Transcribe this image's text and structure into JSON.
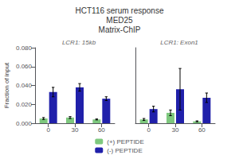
{
  "title": "HCT116 serum response\nMED25\nMatrix-ChIP",
  "chart_data": [
    {
      "type": "bar",
      "title": "LCR1: 15kb",
      "ylabel": "Fraction of input",
      "categories": [
        "0",
        "30",
        "60"
      ],
      "series": [
        {
          "name": "(+) PEPTIDE",
          "color": "#7EC87E",
          "values": [
            0.005,
            0.006,
            0.004
          ],
          "errors": [
            0.001,
            0.001,
            0.0005
          ]
        },
        {
          "name": "(-) PEPTIDE",
          "color": "#2020AA",
          "values": [
            0.033,
            0.038,
            0.026
          ],
          "errors": [
            0.005,
            0.004,
            0.002
          ]
        }
      ],
      "ylim": [
        0,
        0.08
      ],
      "yticks": [
        {
          "value": 0,
          "label": "0.000"
        },
        {
          "value": 0.02,
          "label": "0.020"
        },
        {
          "value": 0.04,
          "label": "0.040"
        },
        {
          "value": 0.06,
          "label": "0.060"
        },
        {
          "value": 0.08,
          "label": "0.080"
        }
      ],
      "grid": false,
      "legend": "bottom"
    },
    {
      "type": "bar",
      "title": "LCR1: Exon1",
      "categories": [
        "0",
        "30",
        "60"
      ],
      "series": [
        {
          "name": "(+) PEPTIDE",
          "color": "#7EC87E",
          "values": [
            0.004,
            0.011,
            0.002
          ],
          "errors": [
            0.001,
            0.003,
            0.0005
          ]
        },
        {
          "name": "(-) PEPTIDE",
          "color": "#2020AA",
          "values": [
            0.015,
            0.036,
            0.027
          ],
          "errors": [
            0.003,
            0.022,
            0.005
          ]
        }
      ],
      "ylim": [
        0,
        0.08
      ],
      "yticks": [
        {
          "value": 0,
          "label": "0.000"
        },
        {
          "value": 0.02,
          "label": "0.020"
        },
        {
          "value": 0.04,
          "label": "0.040"
        },
        {
          "value": 0.06,
          "label": "0.060"
        },
        {
          "value": 0.08,
          "label": "0.080"
        }
      ],
      "grid": false,
      "tick_labels": "x",
      "legend": "bottom"
    }
  ]
}
